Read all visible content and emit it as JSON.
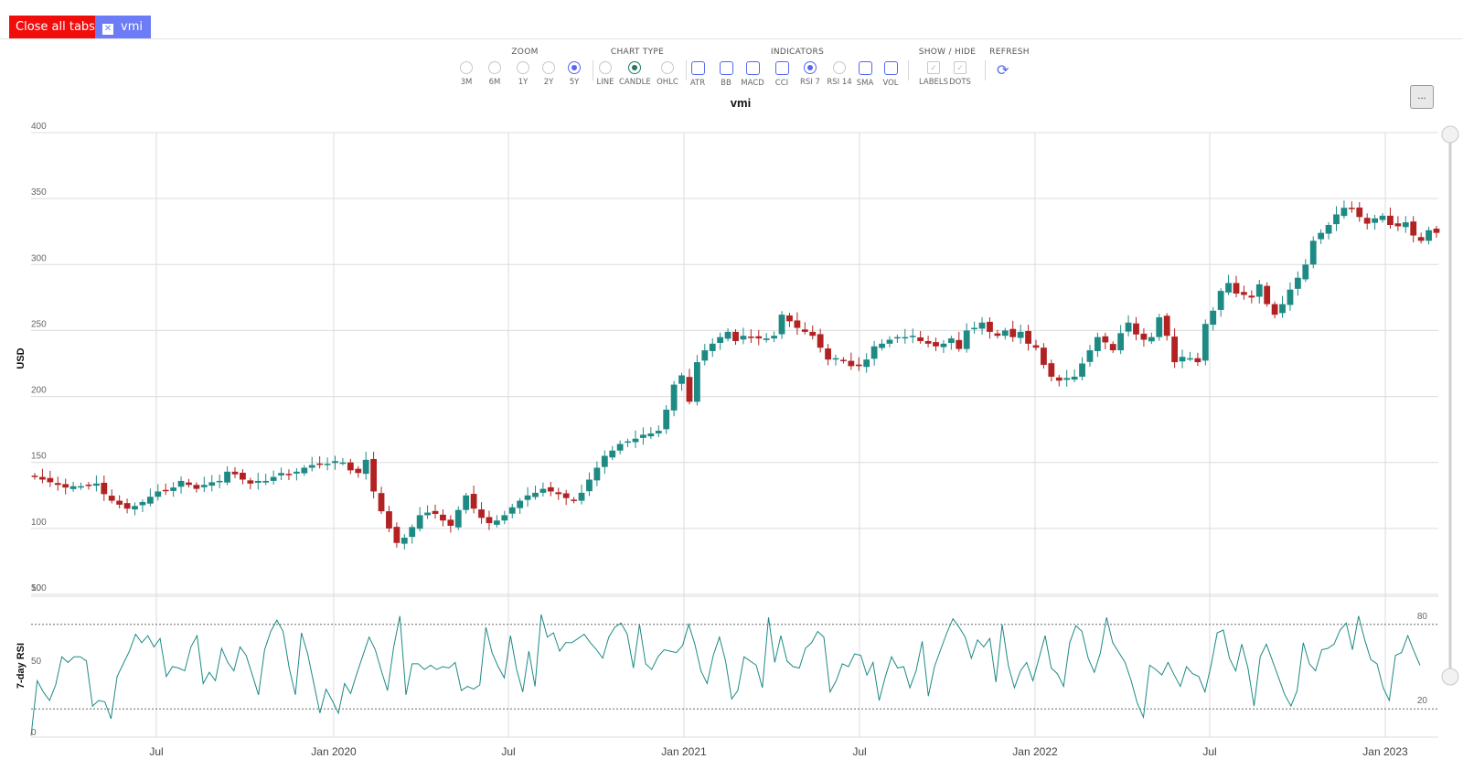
{
  "tabs": {
    "close_all_label": "Close all tabs",
    "close_icon_glyph": "✕",
    "tab_label": "vmi"
  },
  "toolbar": {
    "groups": {
      "zoom": "ZOOM",
      "chart_type": "CHART TYPE",
      "indicators": "INDICATORS",
      "show_hide": "SHOW / HIDE",
      "refresh": "REFRESH"
    },
    "zoom": [
      "3M",
      "6M",
      "1Y",
      "2Y",
      "5Y"
    ],
    "zoom_selected": "5Y",
    "chart_types": [
      "LINE",
      "CANDLE",
      "OHLC"
    ],
    "chart_type_selected": "CANDLE",
    "indicators": [
      "ATR",
      "BB",
      "MACD",
      "CCI",
      "RSI 7",
      "RSI 14",
      "SMA",
      "VOL"
    ],
    "indicator_selected": "RSI 7",
    "show_hide": [
      "LABELS",
      "DOTS"
    ],
    "refresh_icon": "refresh-icon",
    "menu_glyph": "..."
  },
  "colors": {
    "up": "#1d8a84",
    "down": "#b22222",
    "rsi_line": "#1d8a84",
    "accent": "#5568f2",
    "close_all": "#f20d0d"
  },
  "chart_data": [
    {
      "type": "candlestick",
      "title": "vmi",
      "ylabel": "USD",
      "ylim": [
        50,
        400
      ],
      "yticks": [
        50,
        100,
        150,
        200,
        250,
        300,
        350,
        400
      ],
      "xticks": [
        "Jul",
        "Jan 2020",
        "Jul",
        "Jan 2021",
        "Jul",
        "Jan 2022",
        "Jul",
        "Jan 2023"
      ],
      "grid": true,
      "weekly_close": [
        139,
        137,
        135,
        133,
        131,
        132,
        132,
        133,
        134,
        126,
        121,
        118,
        115,
        117,
        120,
        124,
        128,
        129,
        131,
        136,
        133,
        130,
        133,
        135,
        136,
        143,
        141,
        137,
        134,
        136,
        136,
        139,
        142,
        141,
        143,
        146,
        148,
        149,
        149,
        151,
        150,
        144,
        142,
        152,
        128,
        113,
        100,
        89,
        93,
        101,
        110,
        112,
        111,
        106,
        102,
        114,
        125,
        115,
        108,
        104,
        106,
        110,
        116,
        121,
        125,
        127,
        130,
        128,
        126,
        123,
        121,
        127,
        137,
        146,
        155,
        159,
        164,
        166,
        168,
        171,
        172,
        174,
        190,
        209,
        216,
        196,
        226,
        235,
        240,
        245,
        249,
        242,
        246,
        245,
        244,
        244,
        246,
        262,
        257,
        252,
        249,
        246,
        237,
        228,
        229,
        227,
        223,
        223,
        228,
        238,
        240,
        243,
        245,
        245,
        246,
        242,
        240,
        238,
        240,
        244,
        236,
        250,
        252,
        256,
        249,
        246,
        250,
        245,
        249,
        240,
        237,
        224,
        215,
        212,
        214,
        215,
        225,
        235,
        245,
        241,
        235,
        248,
        256,
        247,
        243,
        245,
        260,
        246,
        226,
        230,
        229,
        226,
        255,
        265,
        280,
        286,
        278,
        277,
        275,
        285,
        270,
        262,
        270,
        281,
        290,
        300,
        318,
        324,
        330,
        338,
        343,
        342,
        336,
        331,
        335,
        337,
        330,
        329,
        332,
        322,
        318,
        326,
        324
      ]
    },
    {
      "type": "line",
      "title": "",
      "ylabel": "7-day RSI",
      "ylim": [
        0,
        100
      ],
      "yticks": [
        0,
        50,
        100
      ],
      "reference_lines": [
        20,
        80
      ],
      "values": [
        1,
        40,
        32,
        26,
        37,
        57,
        53,
        57,
        57,
        54,
        22,
        26,
        25,
        13,
        43,
        52,
        61,
        73,
        67,
        72,
        64,
        70,
        43,
        50,
        49,
        47,
        64,
        72,
        38,
        46,
        40,
        63,
        53,
        47,
        64,
        58,
        44,
        30,
        62,
        75,
        83,
        75,
        49,
        30,
        74,
        59,
        38,
        17,
        34,
        26,
        17,
        38,
        31,
        45,
        58,
        71,
        62,
        47,
        33,
        64,
        86,
        30,
        52,
        52,
        48,
        51,
        48,
        50,
        49,
        53,
        33,
        36,
        34,
        37,
        78,
        60,
        50,
        42,
        72,
        48,
        32,
        61,
        36,
        87,
        71,
        74,
        61,
        67,
        67,
        70,
        73,
        67,
        62,
        56,
        71,
        78,
        81,
        73,
        49,
        80,
        52,
        48,
        57,
        62,
        61,
        60,
        65,
        80,
        66,
        47,
        38,
        58,
        71,
        54,
        27,
        33,
        57,
        54,
        51,
        35,
        85,
        53,
        72,
        54,
        50,
        49,
        63,
        67,
        75,
        71,
        32,
        40,
        52,
        50,
        59,
        58,
        44,
        53,
        26,
        43,
        57,
        49,
        50,
        35,
        47,
        68,
        29,
        50,
        62,
        74,
        84,
        78,
        71,
        56,
        69,
        64,
        70,
        39,
        80,
        51,
        35,
        47,
        53,
        40,
        56,
        72,
        49,
        45,
        36,
        67,
        79,
        75,
        56,
        46,
        60,
        85,
        67,
        60,
        53,
        40,
        24,
        14,
        51,
        48,
        44,
        53,
        44,
        36,
        50,
        45,
        43,
        32,
        51,
        74,
        76,
        56,
        47,
        66,
        49,
        22,
        57,
        66,
        54,
        42,
        30,
        22,
        33,
        67,
        52,
        47,
        62,
        63,
        66,
        76,
        81,
        62,
        86,
        69,
        55,
        52,
        35,
        26,
        58,
        60,
        72,
        61,
        51
      ]
    }
  ]
}
